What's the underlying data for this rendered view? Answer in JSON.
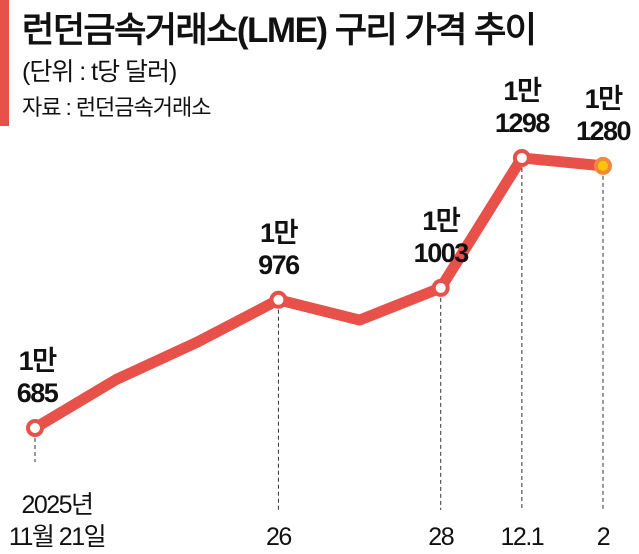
{
  "header": {
    "title": "런던금속거래소(LME) 구리 가격 추이",
    "unit": "(단위 : t당 달러)",
    "source": "자료 : 런던금속거래소"
  },
  "colors": {
    "line": "#e8504a",
    "last_point": "#f7c600",
    "accent": "#e8504a"
  },
  "chart_data": {
    "type": "line",
    "title": "런던금속거래소(LME) 구리 가격 추이",
    "ylabel": "(단위 : t당 달러)",
    "grid": false,
    "points": [
      {
        "date": "2025-11-21",
        "value": 10685,
        "tick": [
          "2025년",
          "11월 21일"
        ],
        "label": [
          "1만",
          "685"
        ]
      },
      {
        "date": "2025-11-24",
        "value": 10795
      },
      {
        "date": "2025-11-25",
        "value": 10880
      },
      {
        "date": "2025-11-26",
        "value": 10976,
        "tick": [
          "26"
        ],
        "label": [
          "1만",
          "976"
        ]
      },
      {
        "date": "2025-11-27",
        "value": 10930
      },
      {
        "date": "2025-11-28",
        "value": 11003,
        "tick": [
          "28"
        ],
        "label": [
          "1만",
          "1003"
        ]
      },
      {
        "date": "2025-12-01",
        "value": 11298,
        "tick": [
          "12.1"
        ],
        "label": [
          "1만",
          "1298"
        ]
      },
      {
        "date": "2025-12-02",
        "value": 11280,
        "tick": [
          "2"
        ],
        "label": [
          "1만",
          "1280"
        ]
      }
    ]
  }
}
